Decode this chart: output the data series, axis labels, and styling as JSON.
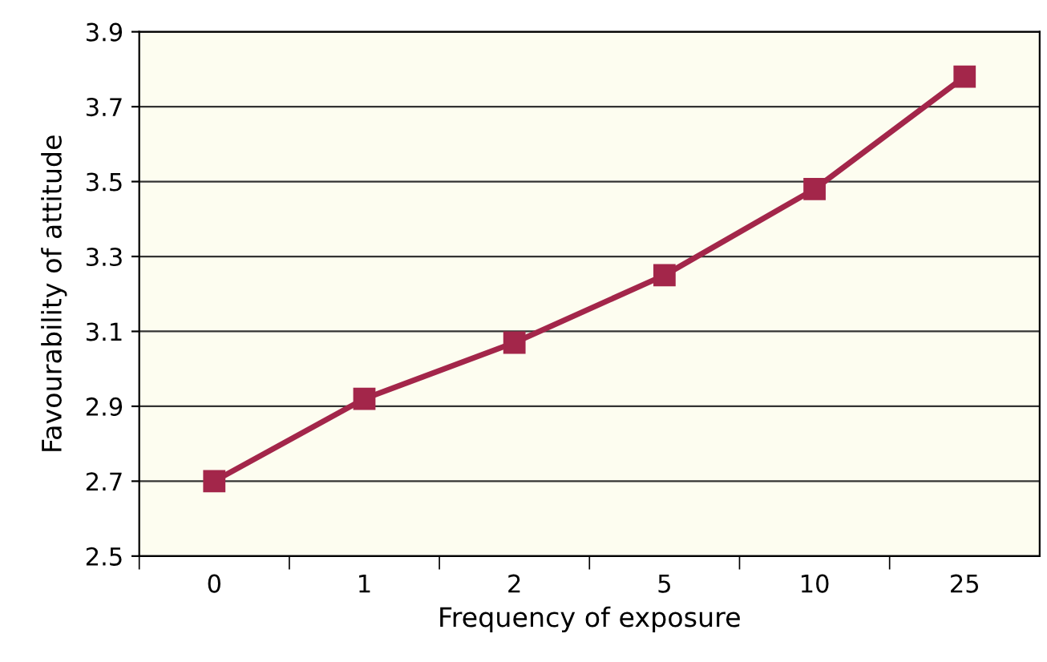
{
  "chart_data": {
    "type": "line",
    "xlabel": "Frequency of exposure",
    "ylabel": "Favourability of attitude",
    "categories": [
      "0",
      "1",
      "2",
      "5",
      "10",
      "25"
    ],
    "series": [
      {
        "color": "#a3264a",
        "values": [
          2.7,
          2.92,
          3.07,
          3.25,
          3.48,
          3.78
        ]
      }
    ],
    "ylim": [
      2.5,
      3.9
    ],
    "yticks": [
      2.5,
      2.7,
      2.9,
      3.1,
      3.3,
      3.5,
      3.7,
      3.9
    ],
    "grid": "y",
    "marker": "square",
    "line_style": "solid"
  }
}
